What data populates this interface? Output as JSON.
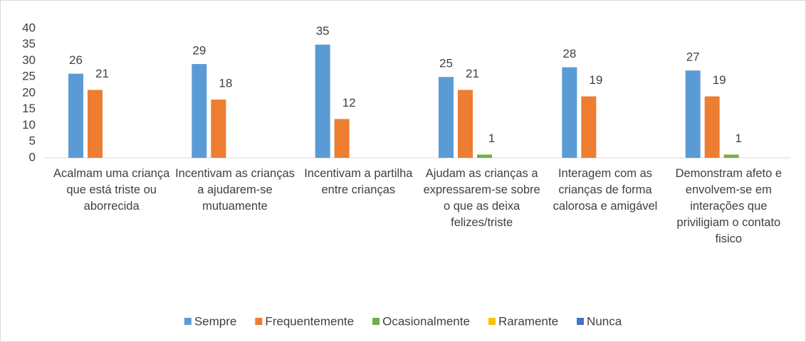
{
  "chart_data": {
    "type": "bar",
    "categories": [
      "Acalmam uma criança que está triste ou aborrecida",
      "Incentivam as crianças a ajudarem-se mutuamente",
      "Incentivam a partilha entre crianças",
      "Ajudam as crianças a expressarem-se sobre o que as deixa felizes/triste",
      "Interagem com as crianças de forma calorosa e amigável",
      "Demonstram afeto e envolvem-se em interações que priviligiam o contato fisico"
    ],
    "series": [
      {
        "name": "Sempre",
        "color": "#5b9bd5",
        "values": [
          26,
          29,
          35,
          25,
          28,
          27
        ]
      },
      {
        "name": "Frequentemente",
        "color": "#ed7d31",
        "values": [
          21,
          18,
          12,
          21,
          19,
          19
        ]
      },
      {
        "name": "Ocasionalmente",
        "color": "#70ad47",
        "values": [
          0,
          0,
          0,
          1,
          0,
          1
        ]
      },
      {
        "name": "Raramente",
        "color": "#ffc000",
        "values": [
          0,
          0,
          0,
          0,
          0,
          0
        ]
      },
      {
        "name": "Nunca",
        "color": "#4472c4",
        "values": [
          0,
          0,
          0,
          0,
          0,
          0
        ]
      }
    ],
    "ylim": [
      0,
      40
    ],
    "yticks": [
      0,
      5,
      10,
      15,
      20,
      25,
      30,
      35,
      40
    ],
    "grid": false,
    "legend": "bottom"
  }
}
